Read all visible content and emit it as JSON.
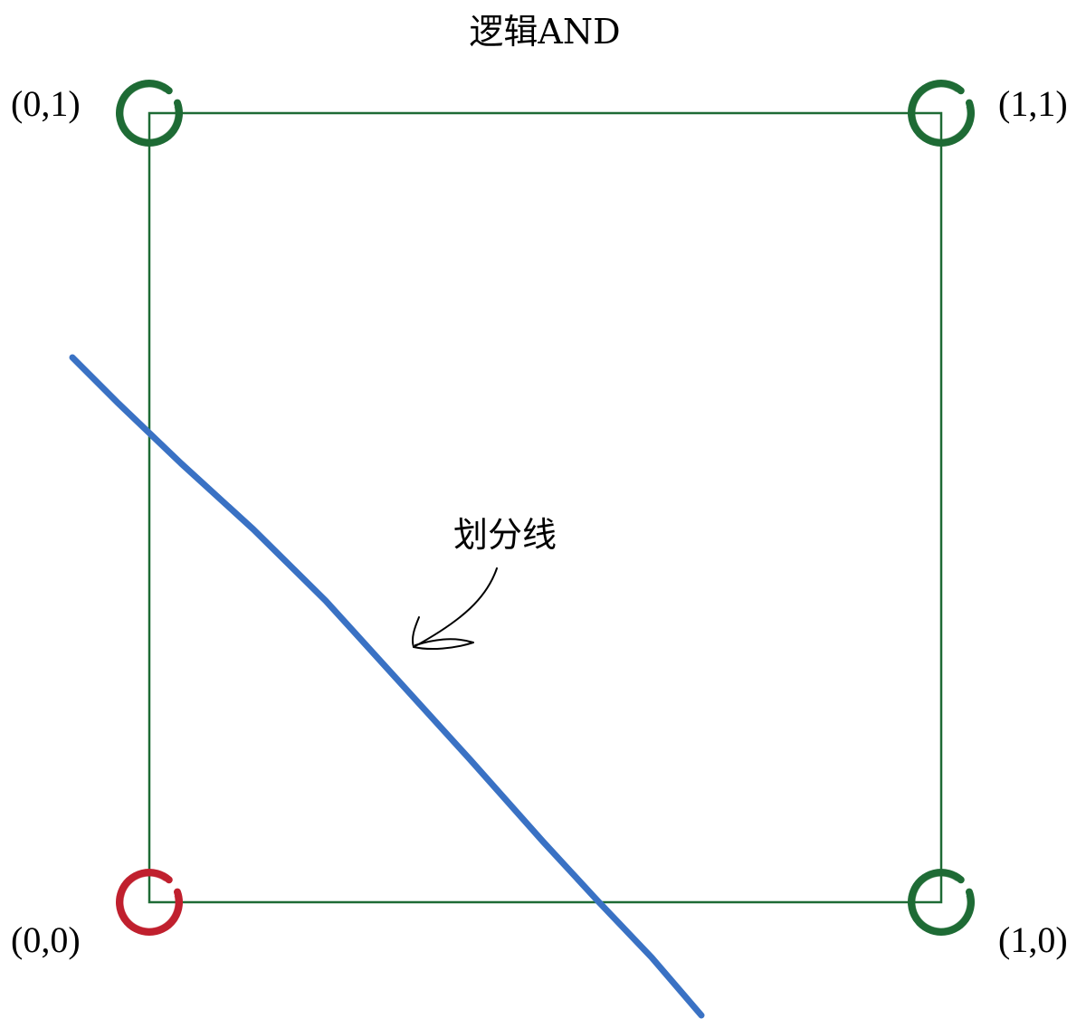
{
  "title": "逻辑AND",
  "annotation": "划分线",
  "points": [
    {
      "label": "(0,0)",
      "x": 0,
      "y": 0,
      "output": 0,
      "color": "#c0202e"
    },
    {
      "label": "(1,0)",
      "x": 1,
      "y": 0,
      "output": 0,
      "color": "#1e6b35"
    },
    {
      "label": "(0,1)",
      "x": 0,
      "y": 1,
      "output": 0,
      "color": "#1e6b35"
    },
    {
      "label": "(1,1)",
      "x": 1,
      "y": 1,
      "output": 1,
      "color": "#1e6b35"
    }
  ],
  "colors": {
    "square": "#1e6b35",
    "dividing_line": "#3a72c4",
    "arrow": "#000000"
  }
}
